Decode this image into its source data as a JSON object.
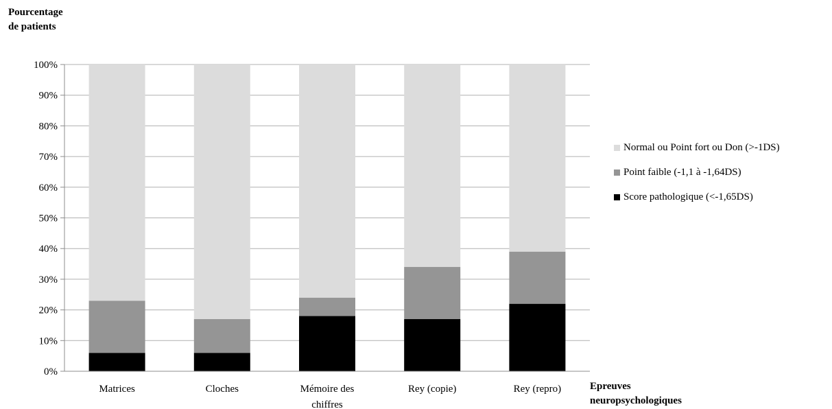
{
  "chart_data": {
    "type": "bar",
    "stacked": true,
    "title": "",
    "ylabel_lines": [
      "Pourcentage",
      "de patients"
    ],
    "xlabel_lines": [
      "Epreuves",
      "neuropsychologiques"
    ],
    "ylim": [
      0,
      100
    ],
    "yticks": [
      "0%",
      "10%",
      "20%",
      "30%",
      "40%",
      "50%",
      "60%",
      "70%",
      "80%",
      "90%",
      "100%"
    ],
    "categories": [
      [
        "Matrices"
      ],
      [
        "Cloches"
      ],
      [
        "Mémoire des",
        "chiffres"
      ],
      [
        "Rey (copie)"
      ],
      [
        "Rey (repro)"
      ]
    ],
    "series": [
      {
        "name": "Score pathologique (<-1,65DS)",
        "color": "#000000",
        "values": [
          6,
          6,
          18,
          17,
          22
        ]
      },
      {
        "name": "Point faible (-1,1 à -1,64DS)",
        "color": "#959595",
        "values": [
          17,
          11,
          6,
          17,
          17
        ]
      },
      {
        "name": "Normal ou Point fort ou Don (>-1DS)",
        "color": "#dcdcdc",
        "values": [
          77,
          83,
          76,
          66,
          61
        ]
      }
    ],
    "legend_order": [
      2,
      1,
      0
    ],
    "legend_position": "right",
    "grid": true
  }
}
